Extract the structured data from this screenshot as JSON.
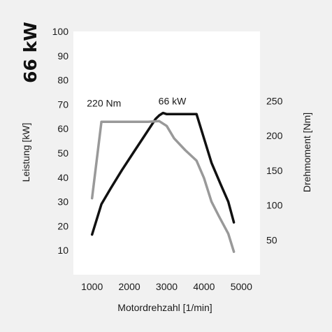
{
  "chart_data": {
    "type": "line",
    "title": "66 kW",
    "xlabel": "Motordrehzahl [1/min]",
    "ylabel_left": "Leistung [kW]",
    "ylabel_right": "Drehmoment [Nm]",
    "xlim": [
      500,
      5500
    ],
    "ylim_left": [
      0,
      100
    ],
    "ylim_right": [
      0,
      350
    ],
    "x_ticks": [
      1000,
      2000,
      3000,
      4000,
      5000
    ],
    "y_left_ticks": [
      10,
      20,
      30,
      40,
      50,
      60,
      70,
      80,
      90,
      100
    ],
    "y_right_ticks": [
      50,
      100,
      150,
      200,
      250
    ],
    "grid": false,
    "series": [
      {
        "name": "Leistung",
        "axis": "left",
        "color": "#111111",
        "x": [
          1000,
          1250,
          1500,
          1800,
          2100,
          2400,
          2700,
          2800,
          2900,
          3000,
          3300,
          3600,
          3800,
          4000,
          4200,
          4450,
          4650,
          4800
        ],
        "y": [
          16.5,
          29,
          35.5,
          43,
          50,
          57,
          64,
          65.5,
          66.5,
          66,
          66,
          66,
          66,
          56,
          46,
          37,
          30,
          21.5
        ]
      },
      {
        "name": "Drehmoment",
        "axis": "right",
        "color": "#999999",
        "x": [
          1000,
          1250,
          1500,
          2000,
          2500,
          2800,
          3000,
          3200,
          3500,
          3800,
          4000,
          4200,
          4400,
          4650,
          4800
        ],
        "y": [
          110,
          220,
          220,
          220,
          220,
          221,
          214,
          196,
          179,
          164,
          139,
          105,
          84,
          59,
          33
        ]
      }
    ],
    "annotations": [
      {
        "text": "66 kW",
        "x": 3150,
        "y": 70,
        "axis": "left"
      },
      {
        "text": "220 Nm",
        "x": 1320,
        "y": 242,
        "axis": "right"
      }
    ]
  }
}
